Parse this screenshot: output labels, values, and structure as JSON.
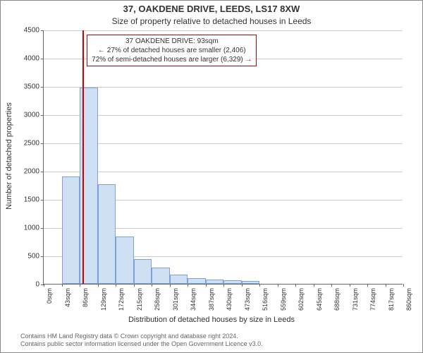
{
  "title": "37, OAKDENE DRIVE, LEEDS, LS17 8XW",
  "subtitle": "Size of property relative to detached houses in Leeds",
  "ylabel": "Number of detached properties",
  "xlabel": "Distribution of detached houses by size in Leeds",
  "footer_line1": "Contains HM Land Registry data © Crown copyright and database right 2024.",
  "footer_line2": "Contains public sector information licensed under the Open Government Licence v3.0.",
  "chart": {
    "type": "histogram",
    "ylim": [
      0,
      4500
    ],
    "yticks": [
      0,
      500,
      1000,
      1500,
      2000,
      2500,
      3000,
      3500,
      4000,
      4500
    ],
    "xticks": [
      "0sqm",
      "43sqm",
      "86sqm",
      "129sqm",
      "172sqm",
      "215sqm",
      "258sqm",
      "301sqm",
      "344sqm",
      "387sqm",
      "430sqm",
      "473sqm",
      "516sqm",
      "559sqm",
      "602sqm",
      "645sqm",
      "688sqm",
      "731sqm",
      "774sqm",
      "817sqm",
      "860sqm"
    ],
    "bars": [
      0,
      1900,
      3480,
      1760,
      840,
      440,
      290,
      160,
      100,
      80,
      60,
      50,
      0,
      0,
      0,
      0,
      0,
      0,
      0,
      0
    ],
    "bar_fill": "#cfe0f5",
    "bar_stroke": "#7da3d6",
    "grid_color": "#cccccc",
    "marker_x_value": 93,
    "x_max_value": 860,
    "marker_color": "#cc0000",
    "annotation": {
      "line1": "37 OAKDENE DRIVE: 93sqm",
      "line2": "← 27% of detached houses are smaller (2,406)",
      "line3": "72% of semi-detached houses are larger (6,329) →",
      "border_color": "#cc0000"
    }
  }
}
